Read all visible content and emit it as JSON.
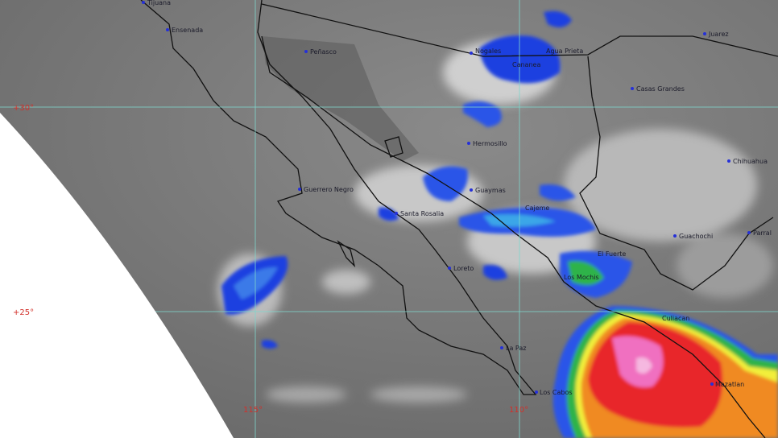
{
  "map": {
    "type": "infrared satellite image",
    "colors": {
      "background_gray": "#7a7a7a",
      "cloud_white": "#e6e6e6",
      "cold_top_blue": "#1f3fe0",
      "cyan": "#3aa6e8",
      "green": "#2db34a",
      "yellow": "#f2ef3a",
      "orange": "#f08a20",
      "red": "#e8262a",
      "pink": "#f06fc0",
      "grid": "#7fd6cc",
      "grid_label": "#d2302a"
    },
    "grid_labels": {
      "lat30": "+30°",
      "lat25": "+25°",
      "lon115": "115°",
      "lon110": "110°"
    },
    "cities": {
      "tijuana": "Tijuana",
      "ensenada": "Ensenada",
      "penasco": "Peñasco",
      "nogales": "Nogales",
      "cananea": "Cananea",
      "agua_prieta": "Agua Prieta",
      "juarez": "Juarez",
      "casas_grandes": "Casas Grandes",
      "hermosillo": "Hermosillo",
      "chihuahua": "Chihuahua",
      "guerrero_negro": "Guerrero Negro",
      "guaymas": "Guaymas",
      "santa_rosalia": "Santa Rosalia",
      "cajeme": "Cajeme",
      "guachochi": "Guachochi",
      "parral": "Parral",
      "el_fuerte": "El Fuerte",
      "los_mochis": "Los Mochis",
      "loreto": "Loreto",
      "culiacan": "Culiacan",
      "la_paz": "La Paz",
      "los_cabos": "Los Cabos",
      "mazatlan": "Mazatlan"
    }
  }
}
